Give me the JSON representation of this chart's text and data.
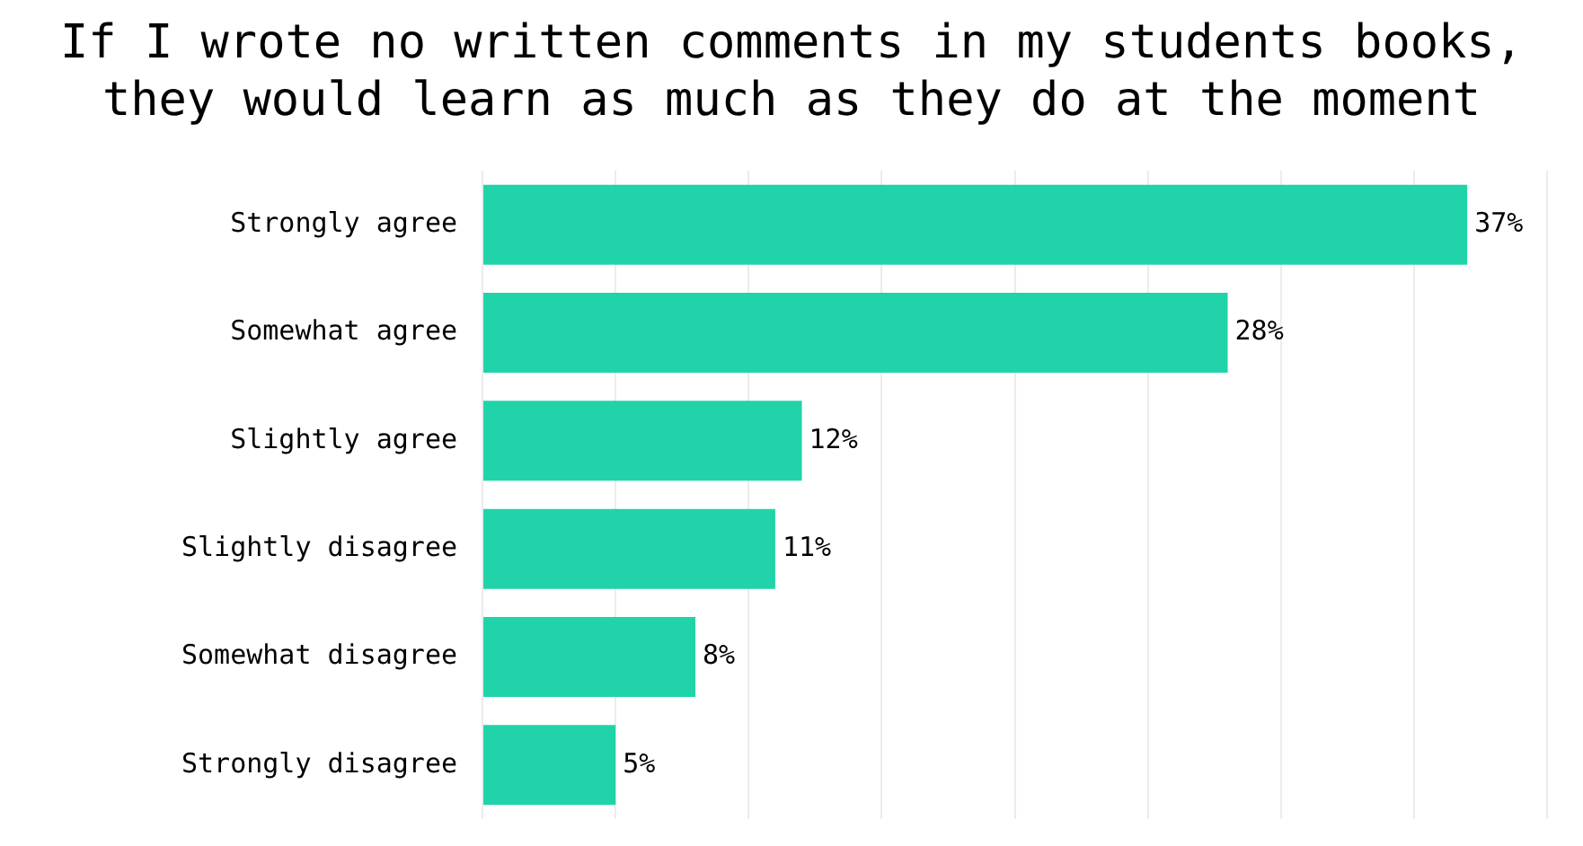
{
  "chart_data": {
    "type": "bar",
    "orientation": "horizontal",
    "title": "If I wrote no written comments in my students books, they would learn as much as they do at the moment",
    "categories": [
      "Strongly agree",
      "Somewhat agree",
      "Slightly agree",
      "Slightly disagree",
      "Somewhat disagree",
      "Strongly disagree"
    ],
    "values": [
      37,
      28,
      12,
      11,
      8,
      5
    ],
    "value_labels": [
      "37%",
      "28%",
      "12%",
      "11%",
      "8%",
      "5%"
    ],
    "color": "#20d3a9",
    "xlim": [
      0,
      40
    ],
    "xticks": [
      {
        "value": 0,
        "label": null
      },
      {
        "value": 5,
        "label": null
      },
      {
        "value": 10,
        "label": null
      },
      {
        "value": 15,
        "label": null
      },
      {
        "value": 20,
        "label": null
      },
      {
        "value": 25,
        "label": null
      },
      {
        "value": 30,
        "label": null
      },
      {
        "value": 35,
        "label": null
      },
      {
        "value": 40,
        "label": null
      }
    ],
    "grid": "x",
    "tick_labels": "y",
    "legend": false
  }
}
